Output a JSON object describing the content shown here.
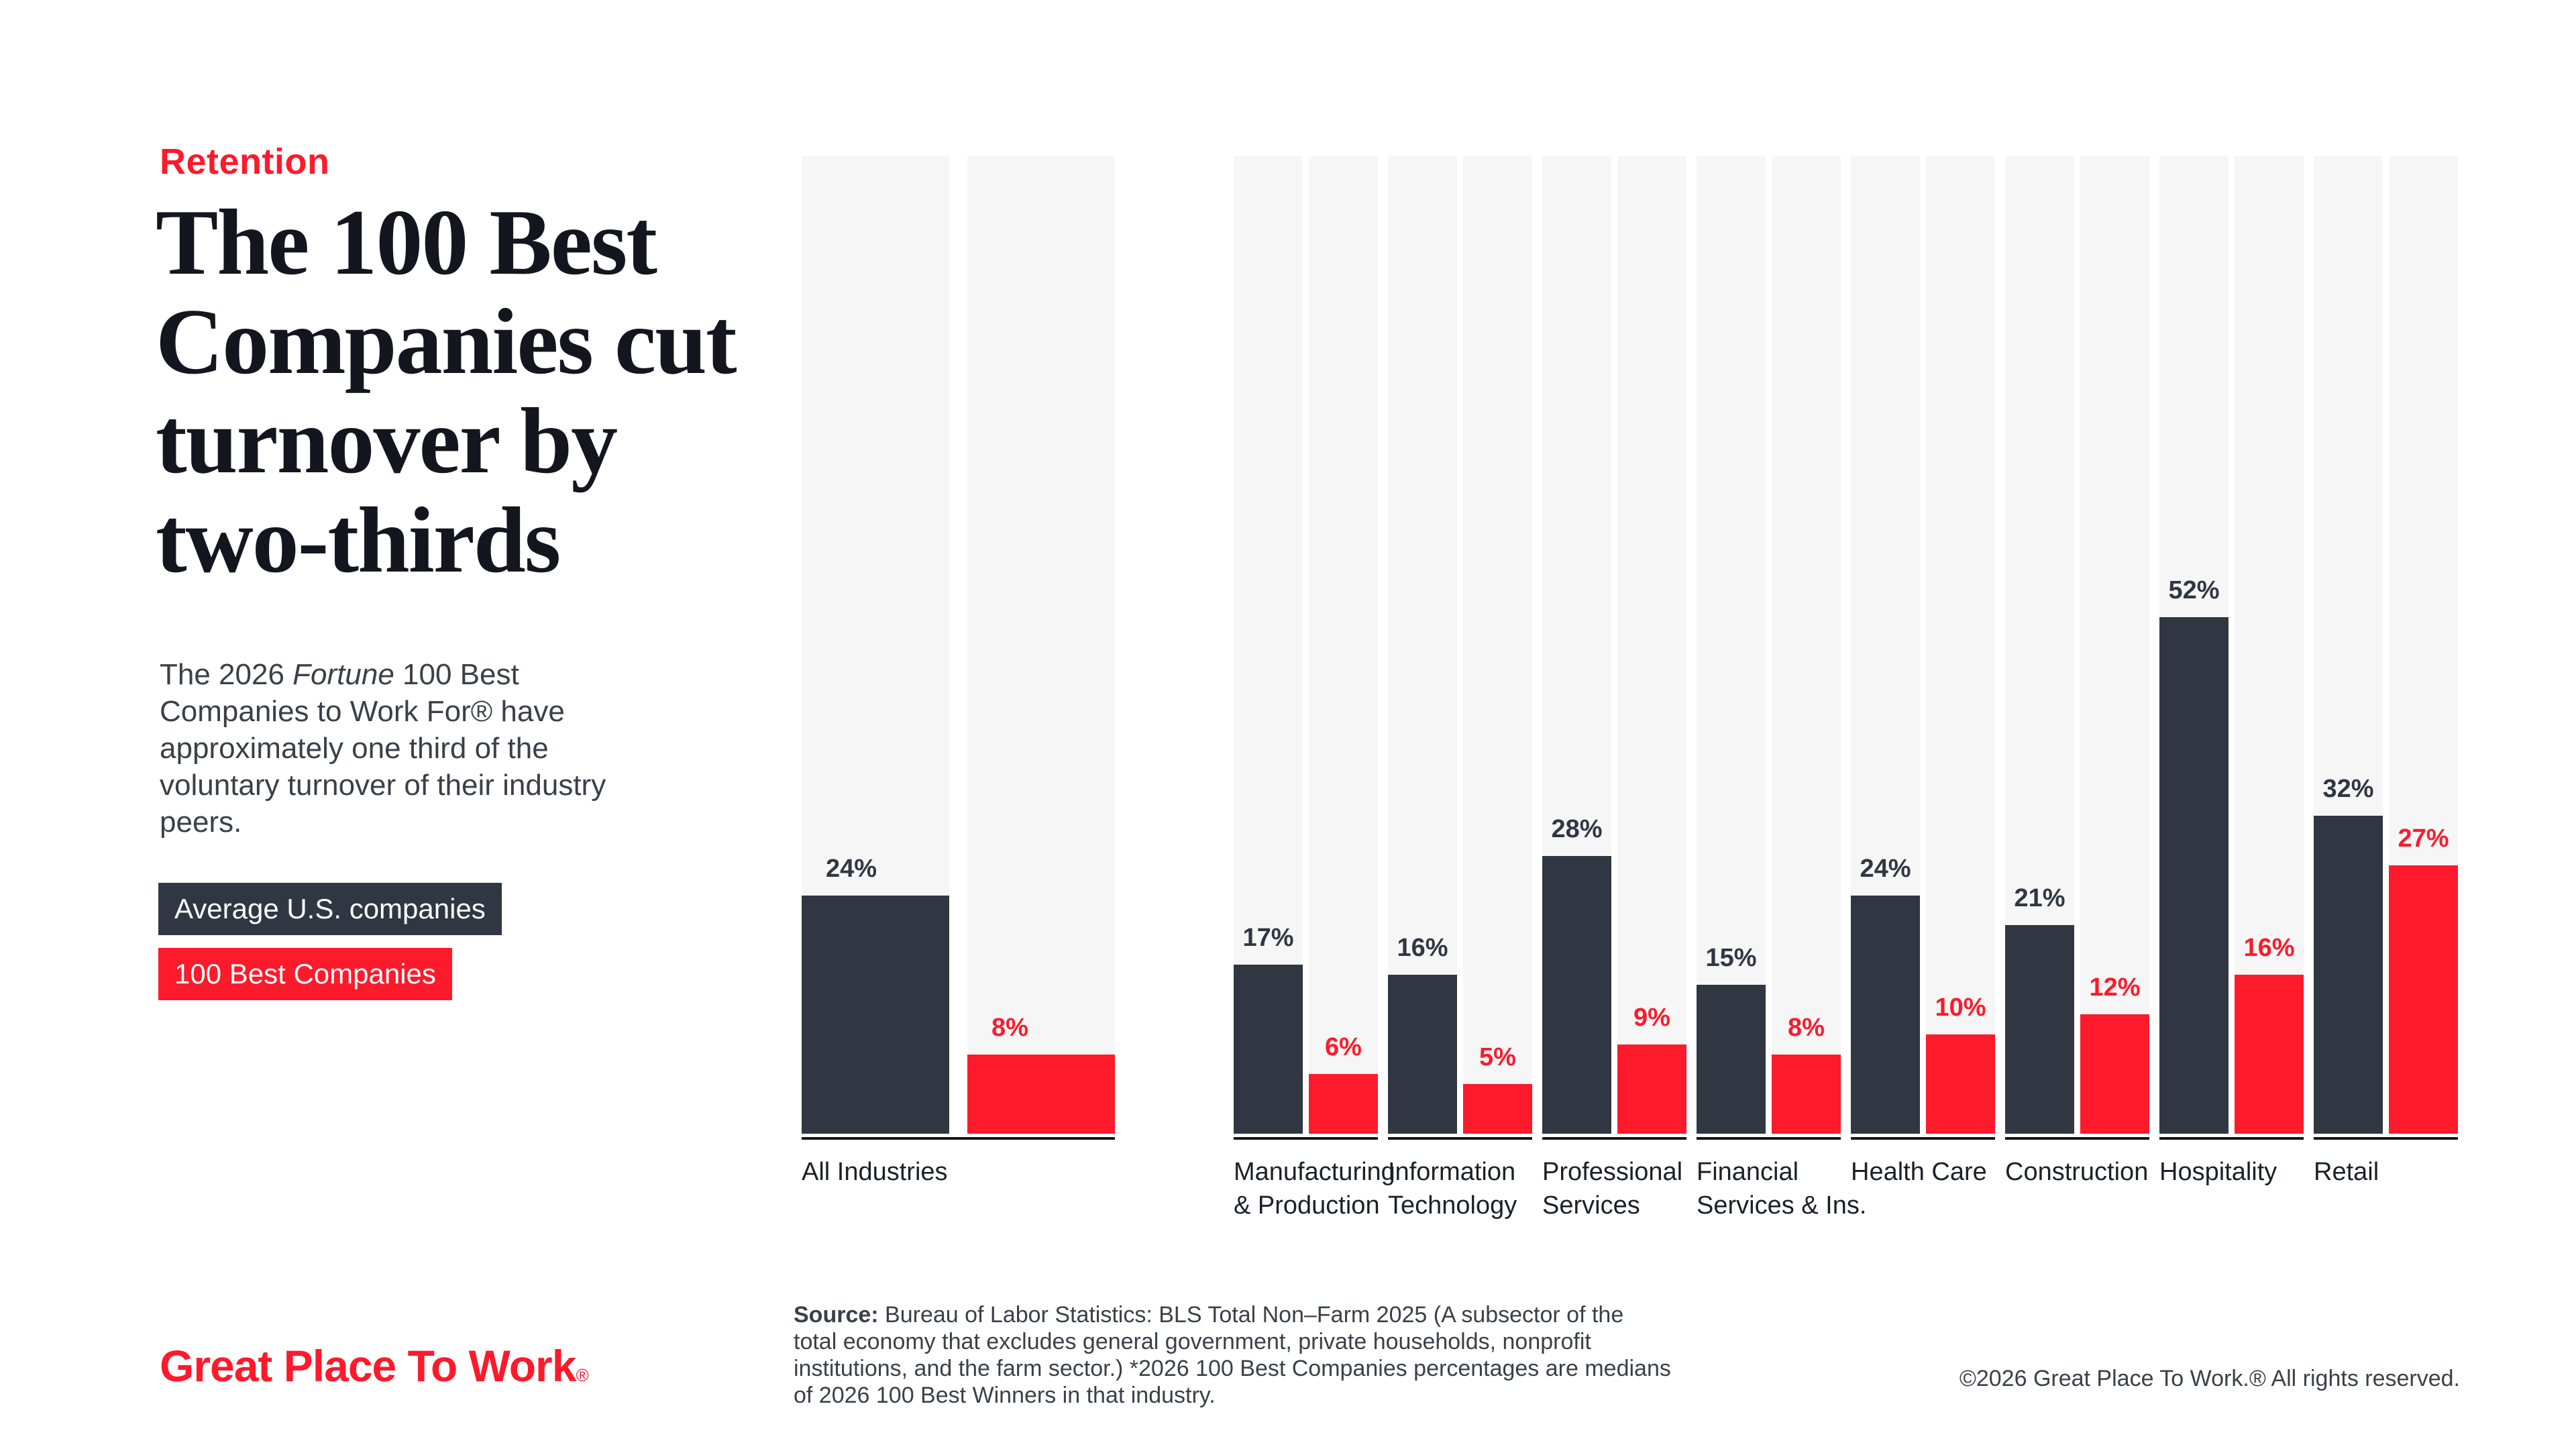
{
  "colors": {
    "brand_red": "#fc1a2b",
    "dark_slate": "#303743",
    "track_gray": "#f5f6f5",
    "ink": "#14161f",
    "body_text": "#3a4049"
  },
  "header": {
    "eyebrow": "Retention",
    "title": "The 100 Best Companies cut turnover by two-thirds",
    "title_lines": "The 100 Best\nCompanies cut\nturnover by\ntwo-thirds",
    "description_pre": "The 2026 ",
    "description_italic": "Fortune",
    "description_post": " 100 Best Companies to Work For® have approximately one third of the voluntary turnover of their industry peers."
  },
  "legend": [
    {
      "label": "Average U.S. companies",
      "color": "#303743"
    },
    {
      "label": "100 Best Companies",
      "color": "#fc1a2b"
    }
  ],
  "chart_data": {
    "type": "bar",
    "unit": "%",
    "ylim": [
      0,
      100
    ],
    "grid": false,
    "value_labels": "above bars",
    "legend_position": "left column",
    "series_names": [
      "Average U.S. companies",
      "100 Best Companies"
    ],
    "groups": [
      {
        "category": "All Industries",
        "label_lines": [
          "All Industries"
        ],
        "avg_us": 24,
        "best_100": 8
      },
      {
        "category": "Manufacturing & Production",
        "label_lines": [
          "Manufacturing",
          "& Production"
        ],
        "avg_us": 17,
        "best_100": 6
      },
      {
        "category": "Information Technology",
        "label_lines": [
          "Information",
          "Technology"
        ],
        "avg_us": 16,
        "best_100": 5
      },
      {
        "category": "Professional Services",
        "label_lines": [
          "Professional",
          "Services"
        ],
        "avg_us": 28,
        "best_100": 9
      },
      {
        "category": "Financial Services & Ins.",
        "label_lines": [
          "Financial",
          "Services & Ins."
        ],
        "avg_us": 15,
        "best_100": 8
      },
      {
        "category": "Health Care",
        "label_lines": [
          "Health Care"
        ],
        "avg_us": 24,
        "best_100": 10
      },
      {
        "category": "Construction",
        "label_lines": [
          "Construction"
        ],
        "avg_us": 21,
        "best_100": 12
      },
      {
        "category": "Hospitality",
        "label_lines": [
          "Hospitality"
        ],
        "avg_us": 52,
        "best_100": 16
      },
      {
        "category": "Retail",
        "label_lines": [
          "Retail"
        ],
        "avg_us": 32,
        "best_100": 27
      }
    ]
  },
  "footer": {
    "logo_text": "Great Place To Work",
    "logo_reg": "®",
    "source_label": "Source:",
    "source_text": " Bureau of Labor Statistics: BLS Total Non–Farm 2025 (A subsector of the total economy that excludes general government, private households, nonprofit institutions, and the farm sector.) *2026 100 Best Companies percentages are medians of 2026 100 Best Winners in that industry.",
    "copyright": "©2026 Great Place To Work.® All rights reserved."
  }
}
